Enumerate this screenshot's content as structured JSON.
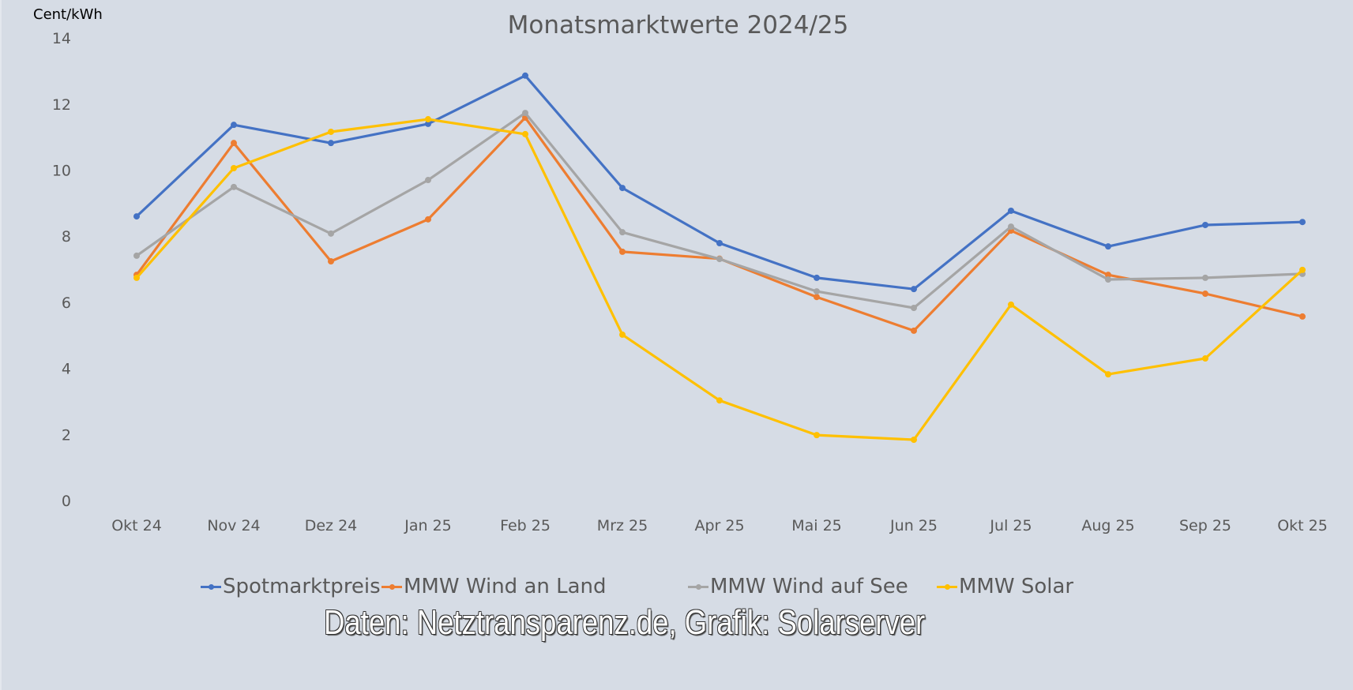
{
  "header": {
    "title": "Monatsmarktwerte 2024/25",
    "y_unit": "Cent/kWh"
  },
  "credit": "Daten: Netztransparenz.de, Grafik: Solarserver",
  "legend": [
    {
      "label": "Spotmarktpreis",
      "color": "#4472c4"
    },
    {
      "label": "MMW Wind an Land",
      "color": "#ed7d31"
    },
    {
      "label": "MMW Wind auf See",
      "color": "#a5a5a5"
    },
    {
      "label": "MMW Solar",
      "color": "#ffc000"
    }
  ],
  "colors": {
    "background": "#d6dce5",
    "axis_text": "#595959",
    "title": "#595959"
  },
  "chart_data": {
    "type": "line",
    "title": "Monatsmarktwerte 2024/25",
    "xlabel": "",
    "ylabel": "Cent/kWh",
    "ylim": [
      0,
      14
    ],
    "yticks": [
      0,
      2,
      4,
      6,
      8,
      10,
      12,
      14
    ],
    "grid": false,
    "legend_position": "bottom",
    "categories": [
      "Okt 24",
      "Nov 24",
      "Dez 24",
      "Jan 25",
      "Feb 25",
      "Mrz 25",
      "Apr 25",
      "Mai 25",
      "Jun 25",
      "Jul 25",
      "Aug 25",
      "Sep 25",
      "Okt 25"
    ],
    "series": [
      {
        "name": "Spotmarktpreis",
        "color": "#4472c4",
        "values": [
          8.6,
          11.37,
          10.82,
          11.4,
          12.86,
          9.46,
          7.79,
          6.74,
          6.4,
          8.77,
          7.69,
          8.34,
          8.43
        ]
      },
      {
        "name": "MMW Wind an Land",
        "color": "#ed7d31",
        "values": [
          6.83,
          10.82,
          7.24,
          8.51,
          11.59,
          7.53,
          7.32,
          6.16,
          5.14,
          8.17,
          6.83,
          6.26,
          5.57
        ]
      },
      {
        "name": "MMW Wind auf See",
        "color": "#a5a5a5",
        "values": [
          7.41,
          9.49,
          8.08,
          9.7,
          11.73,
          8.12,
          7.31,
          6.33,
          5.83,
          8.29,
          6.69,
          6.74,
          6.86
        ]
      },
      {
        "name": "MMW Solar",
        "color": "#ffc000",
        "values": [
          6.74,
          10.06,
          11.16,
          11.54,
          11.09,
          5.02,
          3.03,
          1.98,
          1.84,
          5.93,
          3.82,
          4.3,
          6.98
        ]
      }
    ]
  }
}
